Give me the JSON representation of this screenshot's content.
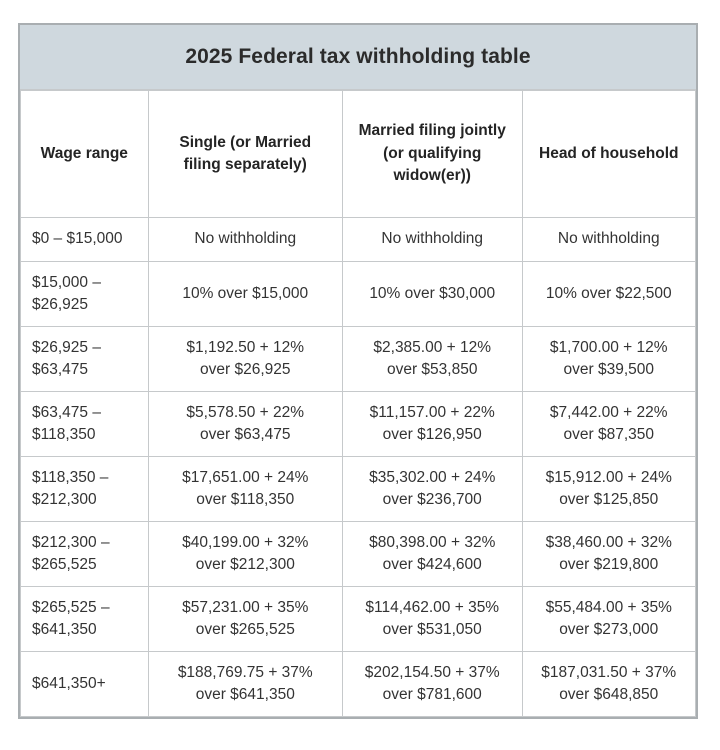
{
  "colors": {
    "header_bg": "#cfd8de",
    "border": "#c6c9cb",
    "outer_border": "#a9aeb1",
    "text": "#2e2e2e"
  },
  "chart_data": {
    "type": "table",
    "title": "2025 Federal tax withholding table",
    "columns": [
      "Wage range",
      "Single (or Married\nfiling separately)",
      "Married filing jointly\n(or qualifying\nwidow(er))",
      "Head of household"
    ],
    "rows": [
      [
        "$0 – $15,000",
        "No withholding",
        "No withholding",
        "No withholding"
      ],
      [
        "$15,000 –\n$26,925",
        "10% over $15,000",
        "10% over $30,000",
        "10% over $22,500"
      ],
      [
        "$26,925 –\n$63,475",
        "$1,192.50 + 12%\nover $26,925",
        "$2,385.00 + 12%\nover $53,850",
        "$1,700.00 + 12%\nover $39,500"
      ],
      [
        "$63,475 –\n$118,350",
        "$5,578.50 + 22%\nover $63,475",
        "$11,157.00 + 22%\nover $126,950",
        "$7,442.00 + 22%\nover $87,350"
      ],
      [
        "$118,350 –\n$212,300",
        "$17,651.00 + 24%\nover $118,350",
        "$35,302.00 + 24%\nover $236,700",
        "$15,912.00 + 24%\nover $125,850"
      ],
      [
        "$212,300 –\n$265,525",
        "$40,199.00 + 32%\nover $212,300",
        "$80,398.00 + 32%\nover $424,600",
        "$38,460.00 + 32%\nover $219,800"
      ],
      [
        "$265,525 –\n$641,350",
        "$57,231.00 + 35%\nover $265,525",
        "$114,462.00 + 35%\nover $531,050",
        "$55,484.00 + 35%\nover $273,000"
      ],
      [
        "$641,350+",
        "$188,769.75 + 37%\nover $641,350",
        "$202,154.50 + 37%\nover $781,600",
        "$187,031.50 + 37%\nover $648,850"
      ]
    ]
  }
}
